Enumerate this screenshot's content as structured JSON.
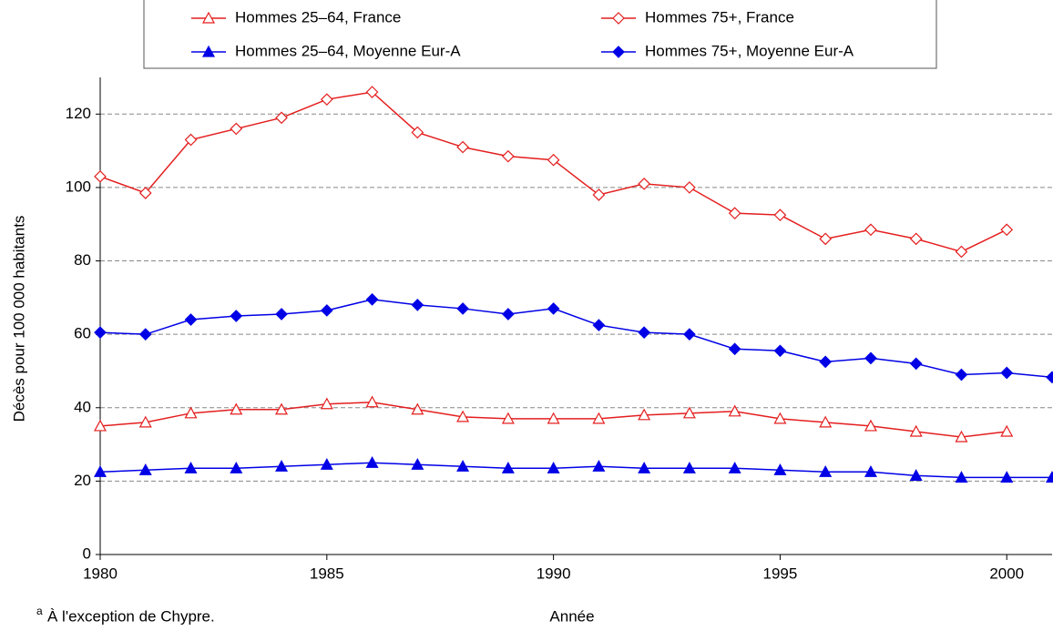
{
  "chart_data": {
    "type": "line",
    "y_label": "Décès pour 100 000 habitants",
    "x_label": "Année",
    "footnote_marker": "a",
    "footnote": "À l'exception de Chypre.",
    "x": [
      1980,
      1981,
      1982,
      1983,
      1984,
      1985,
      1986,
      1987,
      1988,
      1989,
      1990,
      1991,
      1992,
      1993,
      1994,
      1995,
      1996,
      1997,
      1998,
      1999,
      2000,
      2001
    ],
    "xlim": [
      1980,
      2001
    ],
    "xticks": [
      1980,
      1985,
      1990,
      1995,
      2000
    ],
    "ylim": [
      0,
      130
    ],
    "yticks": [
      0,
      20,
      40,
      60,
      80,
      100,
      120
    ],
    "grid": true,
    "series": [
      {
        "name": "Hommes 25–64, France",
        "color": "#e41e1e",
        "marker": "triangle",
        "filled": false,
        "values": [
          35,
          36,
          38.5,
          39.5,
          39.5,
          41,
          41.5,
          39.5,
          37.5,
          37,
          37,
          37,
          38,
          38.5,
          39,
          37,
          36,
          35,
          33.5,
          32,
          33.5,
          null
        ]
      },
      {
        "name": "Hommes 75+, France",
        "color": "#e41e1e",
        "marker": "diamond",
        "filled": false,
        "values": [
          103,
          98.5,
          113,
          116,
          119,
          124,
          126,
          115,
          111,
          108.5,
          107.5,
          98,
          101,
          100,
          93,
          92.5,
          86,
          88.5,
          86,
          82.5,
          88.5,
          null
        ]
      },
      {
        "name": "Hommes 25–64, Moyenne Eur-A",
        "color": "#0000e6",
        "marker": "triangle",
        "filled": true,
        "values": [
          22.5,
          23,
          23.5,
          23.5,
          24,
          24.5,
          25,
          24.5,
          24,
          23.5,
          23.5,
          24,
          23.5,
          23.5,
          23.5,
          23,
          22.5,
          22.5,
          21.5,
          21,
          21,
          21
        ]
      },
      {
        "name": "Hommes 75+, Moyenne Eur-A",
        "color": "#0000e6",
        "marker": "diamond",
        "filled": true,
        "values": [
          60.5,
          60,
          64,
          65,
          65.5,
          66.5,
          69.5,
          68,
          67,
          65.5,
          67,
          62.5,
          60.5,
          60,
          56,
          55.5,
          52.5,
          53.5,
          52,
          49,
          49.5,
          48.3
        ]
      }
    ]
  }
}
